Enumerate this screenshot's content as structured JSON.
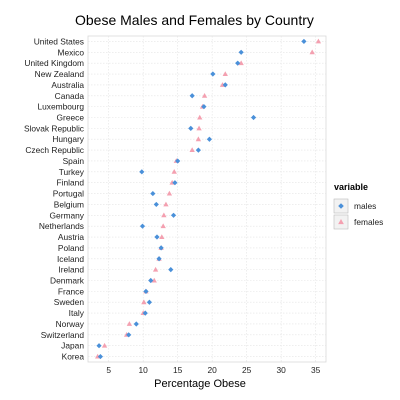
{
  "chart_data": {
    "type": "scatter",
    "title": "Obese Males and Females by Country",
    "xlabel": "Percentage Obese",
    "ylabel": "",
    "xlim": [
      2,
      36.5
    ],
    "xticks": [
      5,
      10,
      15,
      20,
      25,
      30,
      35
    ],
    "grid": true,
    "legend": {
      "title": "variable",
      "position": "right"
    },
    "categories": [
      "United States",
      "Mexico",
      "United Kingdom",
      "New Zealand",
      "Australia",
      "Canada",
      "Luxembourg",
      "Greece",
      "Slovak Republic",
      "Hungary",
      "Czech Republic",
      "Spain",
      "Turkey",
      "Finland",
      "Portugal",
      "Belgium",
      "Germany",
      "Netherlands",
      "Austria",
      "Poland",
      "Iceland",
      "Ireland",
      "Denmark",
      "France",
      "Sweden",
      "Italy",
      "Norway",
      "Switzerland",
      "Japan",
      "Korea"
    ],
    "series": [
      {
        "name": "males",
        "color": "#4a90d9",
        "marker": "diamond",
        "values": [
          33.3,
          24.2,
          23.7,
          20.1,
          21.9,
          17.1,
          18.8,
          26.0,
          16.9,
          19.6,
          18.0,
          15.0,
          9.8,
          14.6,
          11.4,
          11.9,
          14.4,
          9.9,
          12.0,
          12.6,
          12.3,
          14.0,
          11.1,
          10.4,
          10.9,
          10.3,
          9.0,
          7.9,
          3.6,
          3.8
        ]
      },
      {
        "name": "females",
        "color": "#f4a0b0",
        "marker": "triangle",
        "values": [
          35.4,
          34.5,
          24.2,
          21.9,
          21.5,
          18.9,
          18.6,
          18.2,
          18.1,
          18.0,
          17.1,
          14.8,
          14.5,
          14.2,
          13.8,
          13.3,
          13.0,
          12.9,
          12.7,
          12.6,
          12.3,
          11.8,
          11.6,
          10.4,
          10.1,
          10.0,
          8.0,
          7.6,
          4.4,
          3.4
        ]
      }
    ]
  }
}
